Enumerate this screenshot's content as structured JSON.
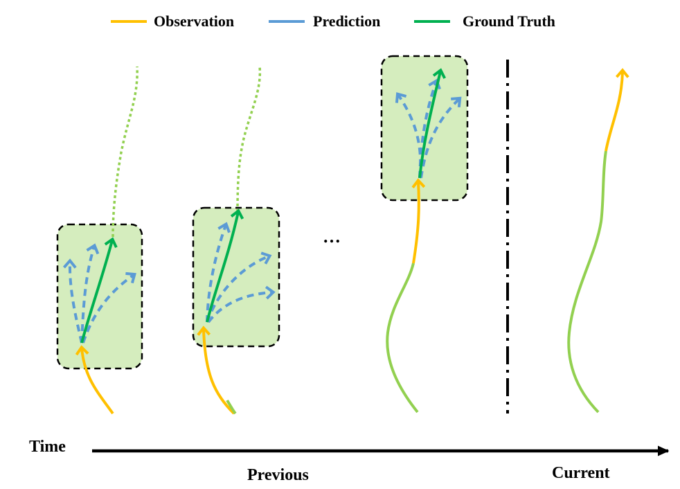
{
  "legend": {
    "observation": "Observation",
    "prediction": "Prediction",
    "ground_truth": "Ground Truth"
  },
  "ellipsis": "…",
  "axis": {
    "time_label": "Time",
    "previous_label": "Previous",
    "current_label": "Current"
  },
  "colors": {
    "observation": "#FFC000",
    "prediction": "#5B9BD5",
    "ground_truth": "#00B050",
    "future": "#92D050",
    "box_fill": "#D5EDBE",
    "box_stroke": "#000000",
    "axis": "#000000"
  }
}
